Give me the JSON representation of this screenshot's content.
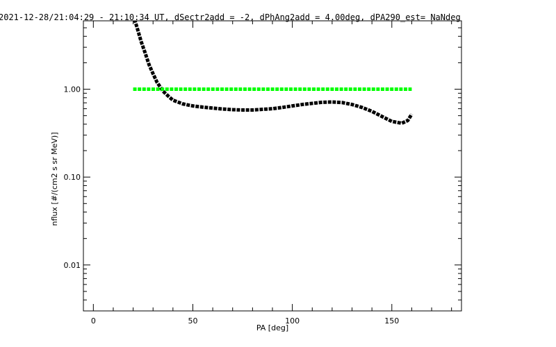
{
  "chart_data": {
    "type": "scatter",
    "title": "2021-12-28/21:04:29 - 21:10:34 UT, dSectr2add = -2, dPhAng2add = 4.00deg, dPA290_est=   NaNdeg",
    "xlabel": "PA [deg]",
    "ylabel": "nflux [#/(cm2 s sr MeV)]",
    "xlim": [
      -5,
      185
    ],
    "ylim": [
      0.003,
      6
    ],
    "yscale": "log",
    "grid": false,
    "x_ticks": [
      {
        "value": 0,
        "label": "0"
      },
      {
        "value": 50,
        "label": "50"
      },
      {
        "value": 100,
        "label": "100"
      },
      {
        "value": 150,
        "label": "150"
      }
    ],
    "y_ticks": [
      {
        "value": 0.01,
        "label": "0.01"
      },
      {
        "value": 0.1,
        "label": "0.10"
      },
      {
        "value": 1,
        "label": "1.00"
      }
    ],
    "series": [
      {
        "color": "#000000",
        "x": [
          20,
          22,
          24,
          26,
          28,
          30,
          32,
          35,
          38,
          40,
          45,
          50,
          55,
          60,
          65,
          70,
          75,
          80,
          85,
          90,
          95,
          100,
          105,
          110,
          115,
          120,
          125,
          130,
          135,
          140,
          145,
          150,
          155,
          158,
          160
        ],
        "y": [
          7.0,
          5.0,
          3.5,
          2.6,
          1.9,
          1.5,
          1.2,
          0.95,
          0.82,
          0.75,
          0.68,
          0.645,
          0.625,
          0.61,
          0.595,
          0.585,
          0.58,
          0.58,
          0.59,
          0.6,
          0.62,
          0.645,
          0.67,
          0.69,
          0.71,
          0.715,
          0.705,
          0.67,
          0.62,
          0.56,
          0.49,
          0.43,
          0.41,
          0.44,
          0.52
        ]
      },
      {
        "color": "#00ff00",
        "x": [
          20,
          40,
          60,
          80,
          100,
          120,
          140,
          160
        ],
        "y": [
          1.0,
          1.0,
          1.0,
          1.0,
          1.0,
          1.0,
          1.0,
          1.0
        ]
      }
    ]
  }
}
